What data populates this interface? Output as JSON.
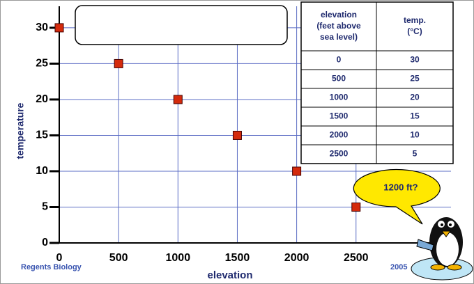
{
  "chart_data": {
    "type": "scatter",
    "x_label": "elevation",
    "y_label": "temperature",
    "x": [
      0,
      500,
      1000,
      1500,
      2000,
      2500
    ],
    "values": [
      30,
      25,
      20,
      15,
      10,
      5
    ],
    "color": "#d42a0c",
    "xlim": [
      0,
      3300
    ],
    "ylim": [
      0,
      33
    ],
    "xticks": [
      0,
      500,
      1000,
      1500,
      2000,
      2500
    ],
    "yticks": [
      0,
      5,
      10,
      15,
      20,
      25,
      30
    ],
    "grid": true
  },
  "table": {
    "header": [
      [
        "elevation",
        "(feet above",
        "sea level)"
      ],
      [
        "temp.",
        "(°C)"
      ]
    ],
    "rows": [
      [
        0,
        30
      ],
      [
        500,
        25
      ],
      [
        1000,
        20
      ],
      [
        1500,
        15
      ],
      [
        2000,
        10
      ],
      [
        2500,
        5
      ]
    ]
  },
  "callout": "1200 ft?",
  "footer": {
    "left": "Regents Biology",
    "right": "2005"
  }
}
